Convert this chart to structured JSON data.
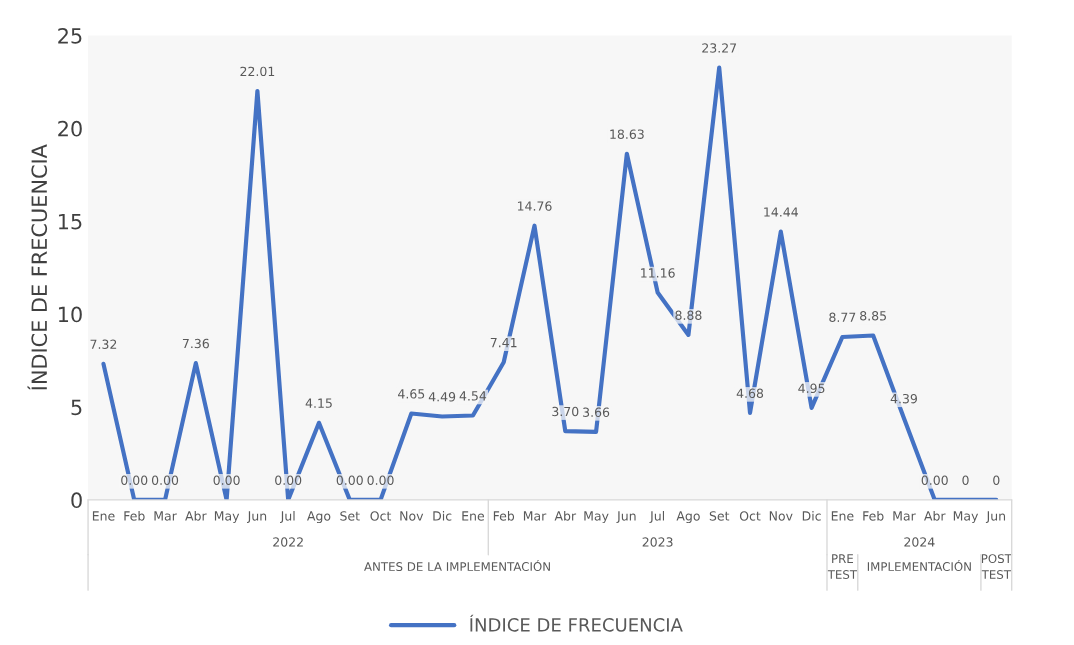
{
  "chart_data": {
    "type": "line",
    "ylabel": "ÍNDICE DE FRECUENCIA",
    "categories": [
      "Ene",
      "Feb",
      "Mar",
      "Abr",
      "May",
      "Jun",
      "Jul",
      "Ago",
      "Set",
      "Oct",
      "Nov",
      "Dic",
      "Ene",
      "Feb",
      "Mar",
      "Abr",
      "May",
      "Jun",
      "Jul",
      "Ago",
      "Set",
      "Oct",
      "Nov",
      "Dic",
      "Ene",
      "Feb",
      "Mar",
      "Abr",
      "May",
      "Jun"
    ],
    "series": [
      {
        "name": "ÍNDICE DE FRECUENCIA",
        "color": "#4472c4",
        "values": [
          7.32,
          0,
          0,
          7.36,
          0,
          22.01,
          0,
          4.15,
          0,
          0,
          4.65,
          4.49,
          4.54,
          7.41,
          14.76,
          3.7,
          3.66,
          18.63,
          11.16,
          8.88,
          23.27,
          4.68,
          14.44,
          4.95,
          8.77,
          8.85,
          4.39,
          0,
          0,
          0
        ],
        "value_labels": [
          "7.32",
          "0.00",
          "0.00",
          "7.36",
          "0.00",
          "22.01",
          "0.00",
          "4.15",
          "0.00",
          "0.00",
          "4.65",
          "4.49",
          "4.54",
          "7.41",
          "14.76",
          "3.70",
          "3.66",
          "18.63",
          "11.16",
          "8.88",
          "23.27",
          "4.68",
          "14.44",
          "4.95",
          "8.77",
          "8.85",
          "4.39",
          "0.00",
          "0",
          "0"
        ]
      }
    ],
    "annotations": [
      "2022",
      "2023",
      "2024",
      "ANTES DE LA IMPLEMENTACIÓN",
      "PRE\nTEST",
      "IMPLEMENTACIÓN",
      "POST\nTEST"
    ],
    "ylim": [
      0,
      25
    ],
    "yticks": [
      0,
      5,
      10,
      15,
      20,
      25
    ],
    "grid": false,
    "legend": "bottom",
    "marker": "none",
    "line_style": "solid"
  }
}
